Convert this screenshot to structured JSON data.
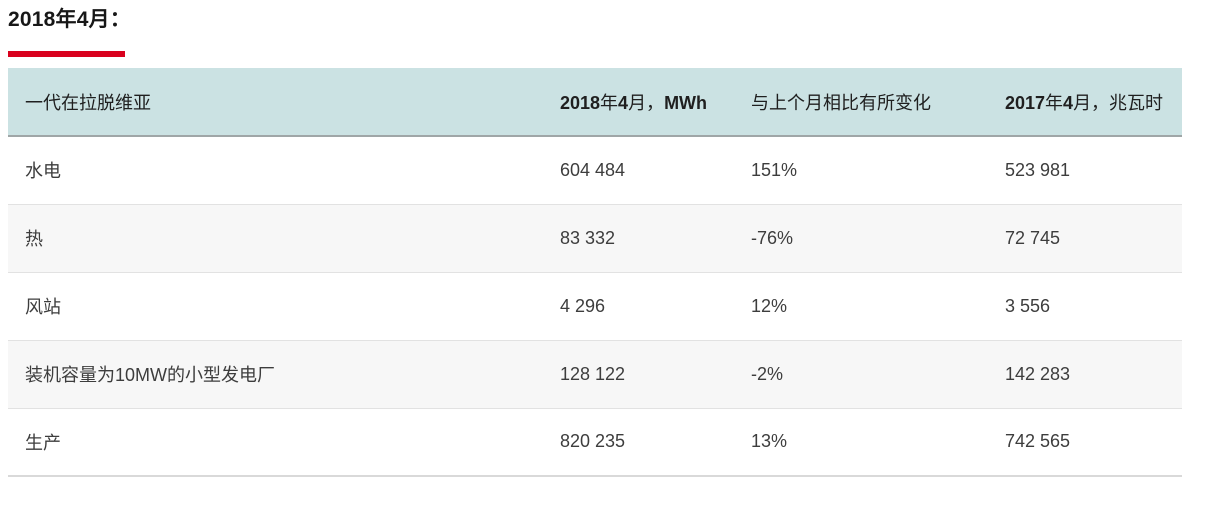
{
  "page": {
    "title": "2018年4月：",
    "accent_color": "#d9011e"
  },
  "table": {
    "header_bg": "#cbe2e3",
    "alt_row_bg": "#f7f7f7",
    "columns": [
      {
        "key": "name",
        "label": "一代在拉脱维亚",
        "segments": [
          {
            "text": "一代在拉脱维亚",
            "bold": false
          }
        ]
      },
      {
        "key": "april_2018_mwh",
        "label": "2018年4月，MWh",
        "segments": [
          {
            "text": "2018",
            "bold": true
          },
          {
            "text": "年",
            "bold": false
          },
          {
            "text": "4",
            "bold": true
          },
          {
            "text": "月，",
            "bold": false
          },
          {
            "text": "MWh",
            "bold": true
          }
        ]
      },
      {
        "key": "change_vs_prev_month",
        "label": "与上个月相比有所变化",
        "segments": [
          {
            "text": "与上个月相比有所变化",
            "bold": false
          }
        ]
      },
      {
        "key": "april_2017_mwh",
        "label": "2017年4月，兆瓦时",
        "segments": [
          {
            "text": "2017",
            "bold": true
          },
          {
            "text": "年",
            "bold": false
          },
          {
            "text": "4",
            "bold": true
          },
          {
            "text": "月，兆瓦时",
            "bold": false
          }
        ]
      }
    ],
    "rows": [
      {
        "name": "水电",
        "april_2018_mwh": "604 484",
        "change_vs_prev_month": "151%",
        "april_2017_mwh": "523 981"
      },
      {
        "name": "热",
        "april_2018_mwh": "83 332",
        "change_vs_prev_month": "-76%",
        "april_2017_mwh": "72 745"
      },
      {
        "name": "风站",
        "april_2018_mwh": "4 296",
        "change_vs_prev_month": "12%",
        "april_2017_mwh": "3 556"
      },
      {
        "name": "装机容量为10MW的小型发电厂",
        "april_2018_mwh": "128 122",
        "change_vs_prev_month": "-2%",
        "april_2017_mwh": "142 283"
      },
      {
        "name": "生产",
        "april_2018_mwh": "820 235",
        "change_vs_prev_month": "13%",
        "april_2017_mwh": "742 565"
      }
    ]
  },
  "chart_data": {
    "type": "table",
    "title": "2018年4月：",
    "categories": [
      "水电",
      "热",
      "风站",
      "装机容量为10MW的小型发电厂",
      "生产"
    ],
    "series": [
      {
        "name": "2018年4月，MWh",
        "values": [
          604484,
          83332,
          4296,
          128122,
          820235
        ]
      },
      {
        "name": "与上个月相比有所变化",
        "values": [
          "151%",
          "-76%",
          "12%",
          "-2%",
          "13%"
        ]
      },
      {
        "name": "2017年4月，兆瓦时",
        "values": [
          523981,
          72745,
          3556,
          142283,
          742565
        ]
      }
    ]
  }
}
